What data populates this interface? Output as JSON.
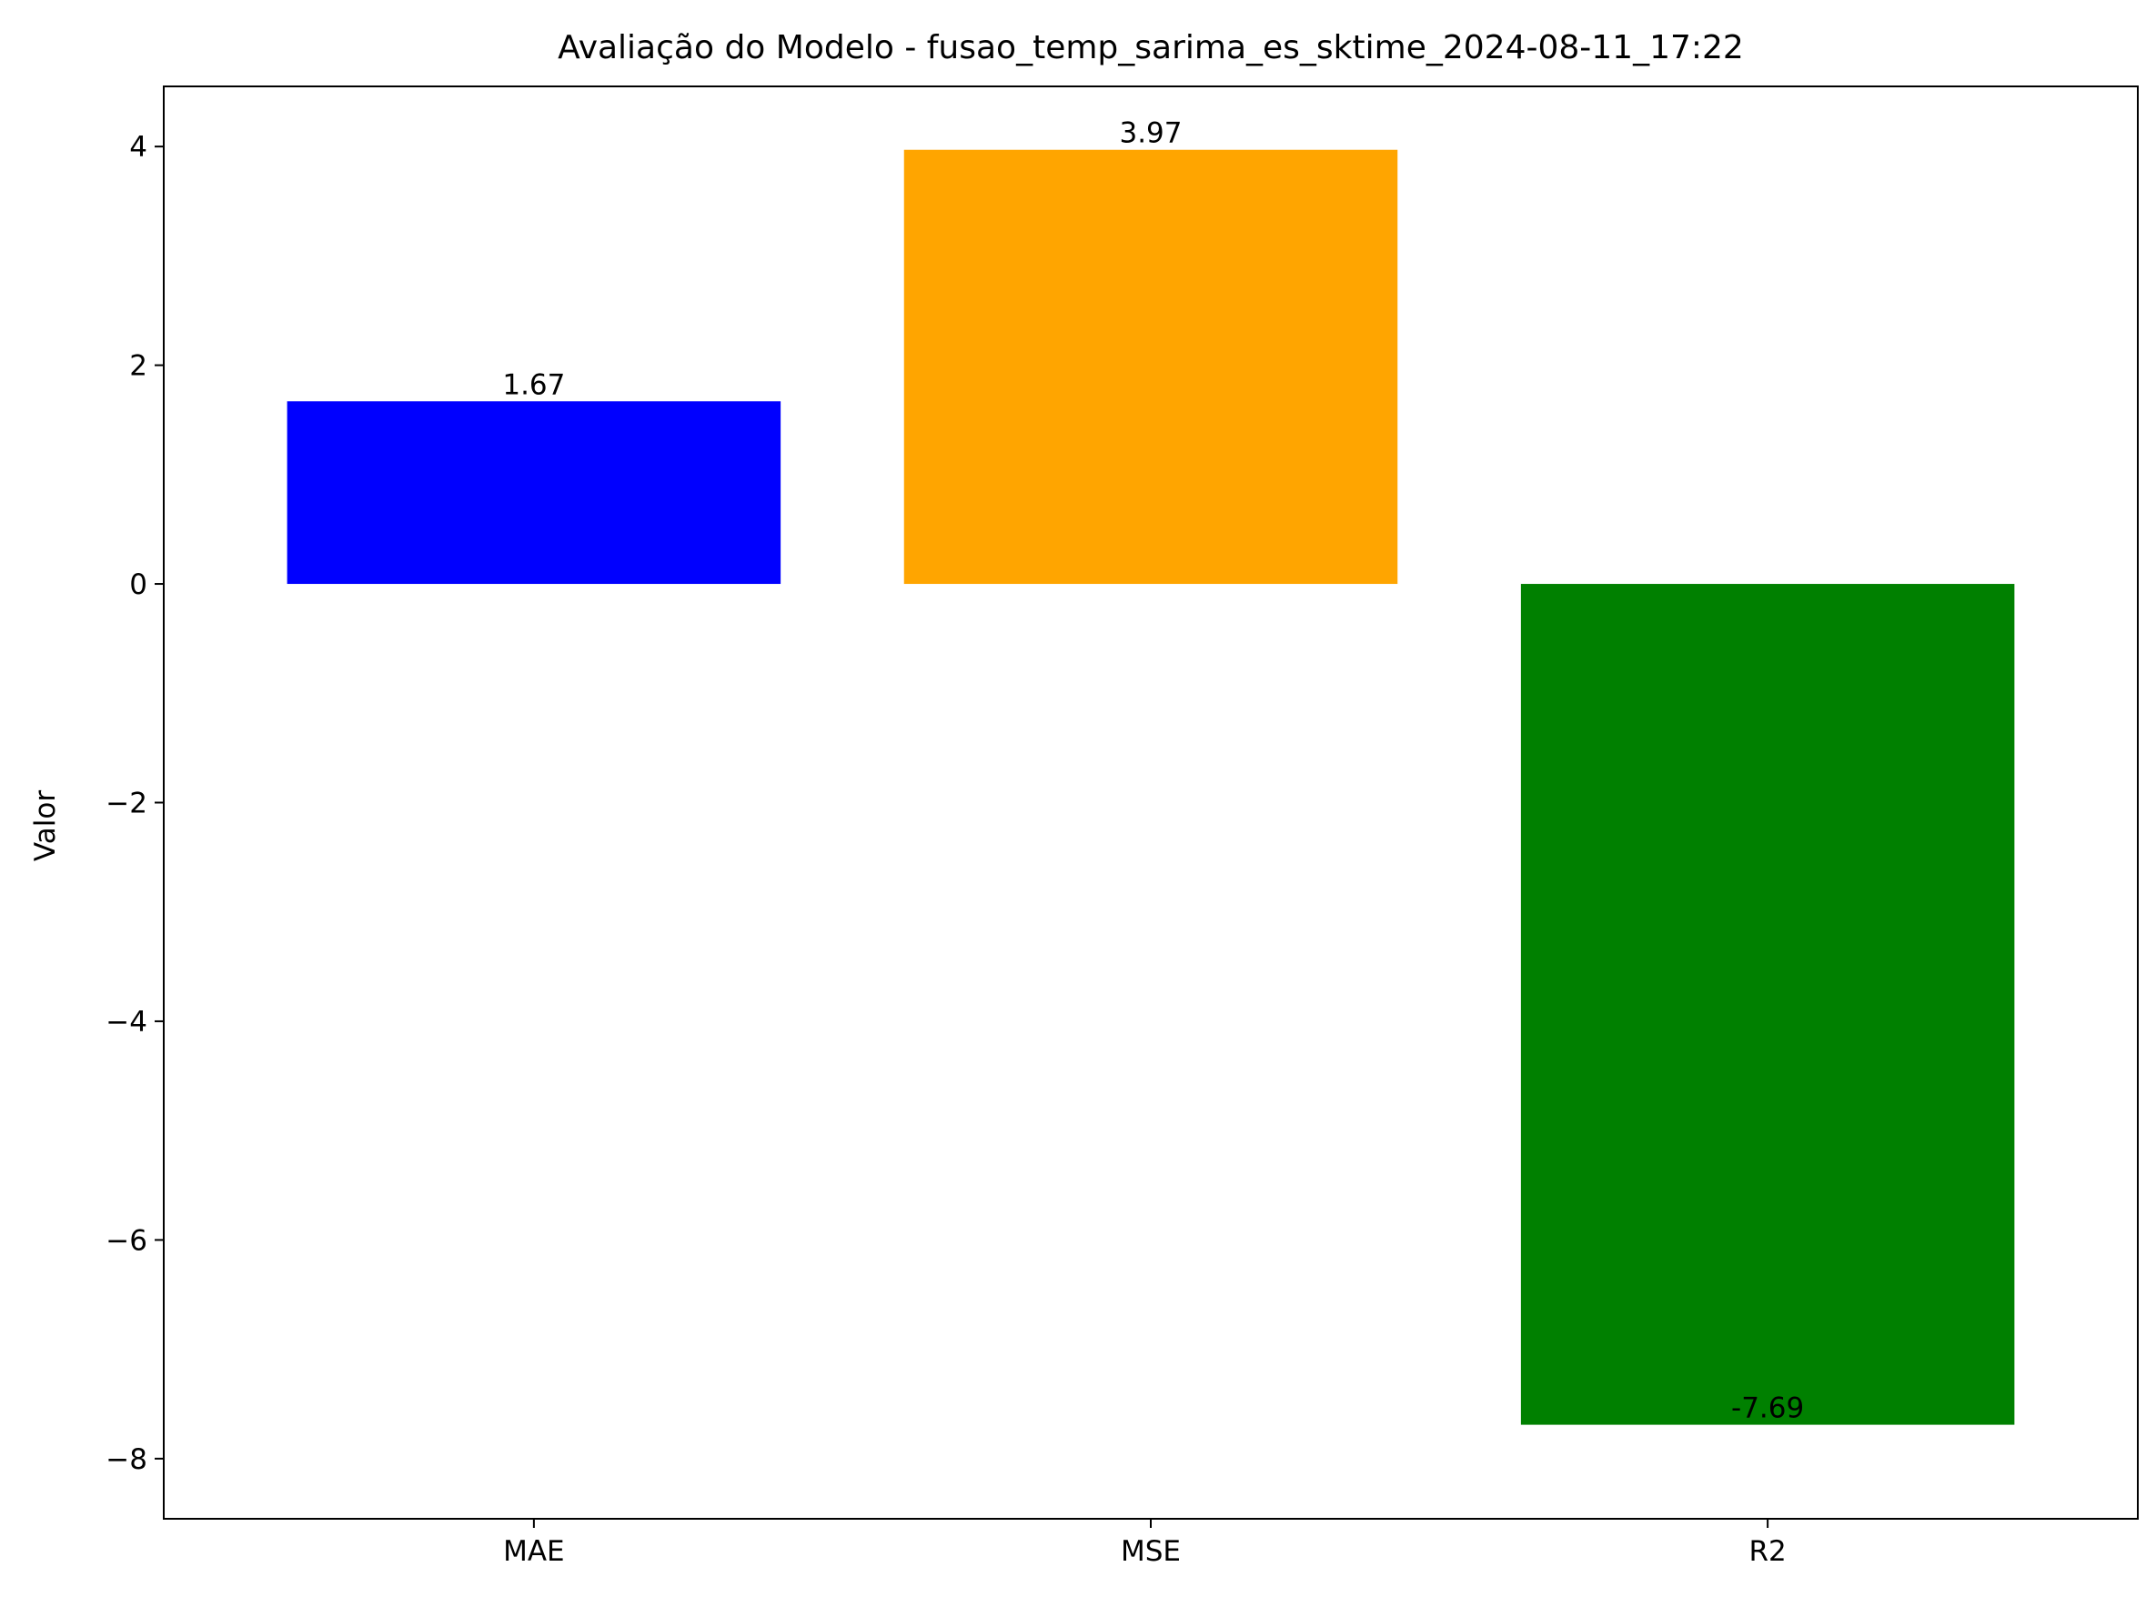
{
  "chart_data": {
    "type": "bar",
    "title": "Avaliação do Modelo - fusao_temp_sarima_es_sktime_2024-08-11_17:22",
    "xlabel": "",
    "ylabel": "Valor",
    "categories": [
      "MAE",
      "MSE",
      "R2"
    ],
    "values": [
      1.67,
      3.97,
      -7.69
    ],
    "value_labels": [
      "1.67",
      "3.97",
      "-7.69"
    ],
    "colors": [
      "#0000ff",
      "#ffa500",
      "#008000"
    ],
    "ylim": [
      -8.55,
      4.55
    ],
    "yticks": [
      -8,
      -6,
      -4,
      -2,
      0,
      2,
      4
    ],
    "ytick_labels": [
      "−8",
      "−6",
      "−4",
      "−2",
      "0",
      "2",
      "4"
    ],
    "grid": false,
    "legend": "none"
  }
}
